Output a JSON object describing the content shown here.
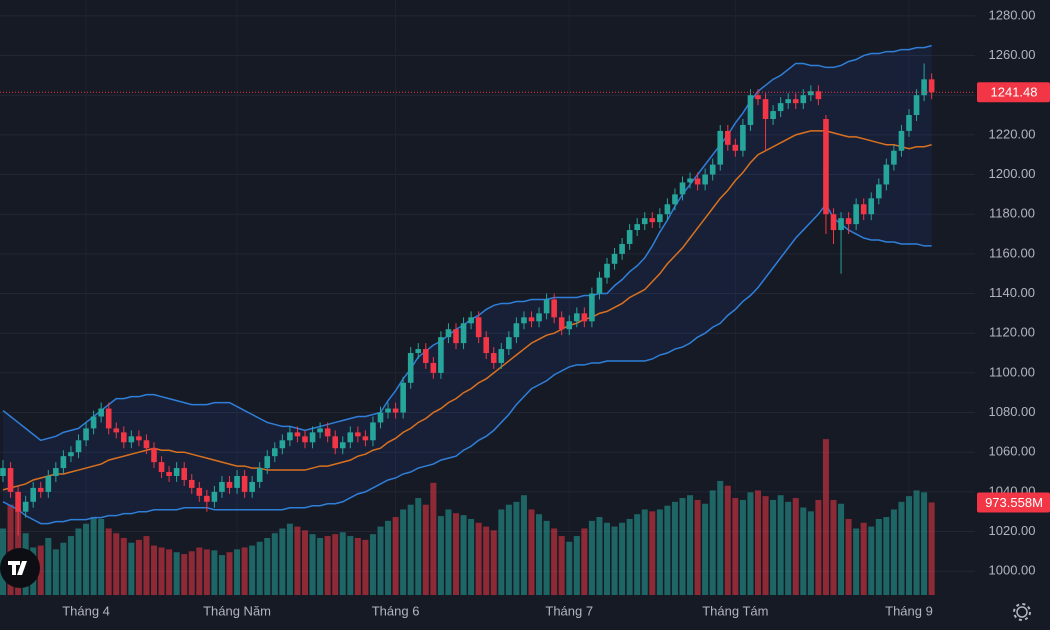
{
  "chart_data": {
    "type": "candlestick",
    "candles": [
      [
        1048,
        1056,
        1045,
        1052
      ],
      [
        1052,
        1055,
        1037,
        1040
      ],
      [
        1040,
        1043,
        1018,
        1030
      ],
      [
        1030,
        1038,
        1027,
        1035
      ],
      [
        1035,
        1045,
        1032,
        1042
      ],
      [
        1042,
        1045,
        1037,
        1040
      ],
      [
        1040,
        1051,
        1037,
        1048
      ],
      [
        1048,
        1055,
        1045,
        1052
      ],
      [
        1052,
        1061,
        1049,
        1058
      ],
      [
        1058,
        1063,
        1055,
        1060
      ],
      [
        1060,
        1069,
        1057,
        1066
      ],
      [
        1066,
        1075,
        1063,
        1072
      ],
      [
        1072,
        1081,
        1069,
        1078
      ],
      [
        1078,
        1085,
        1075,
        1082
      ],
      [
        1082,
        1085,
        1069,
        1072
      ],
      [
        1072,
        1075,
        1067,
        1070
      ],
      [
        1070,
        1073,
        1062,
        1065
      ],
      [
        1065,
        1071,
        1062,
        1068
      ],
      [
        1068,
        1071,
        1063,
        1066
      ],
      [
        1066,
        1069,
        1059,
        1062
      ],
      [
        1062,
        1065,
        1052,
        1055
      ],
      [
        1055,
        1058,
        1047,
        1050
      ],
      [
        1050,
        1053,
        1045,
        1048
      ],
      [
        1048,
        1055,
        1045,
        1052
      ],
      [
        1052,
        1055,
        1043,
        1046
      ],
      [
        1046,
        1049,
        1039,
        1042
      ],
      [
        1042,
        1045,
        1035,
        1038
      ],
      [
        1038,
        1041,
        1030,
        1035
      ],
      [
        1035,
        1043,
        1032,
        1040
      ],
      [
        1040,
        1048,
        1037,
        1045
      ],
      [
        1045,
        1048,
        1039,
        1042
      ],
      [
        1042,
        1051,
        1039,
        1048
      ],
      [
        1048,
        1051,
        1037,
        1040
      ],
      [
        1040,
        1048,
        1037,
        1045
      ],
      [
        1045,
        1055,
        1042,
        1052
      ],
      [
        1052,
        1061,
        1049,
        1058
      ],
      [
        1058,
        1065,
        1055,
        1062
      ],
      [
        1062,
        1069,
        1059,
        1066
      ],
      [
        1066,
        1073,
        1063,
        1070
      ],
      [
        1070,
        1073,
        1065,
        1068
      ],
      [
        1068,
        1071,
        1062,
        1065
      ],
      [
        1065,
        1073,
        1062,
        1070
      ],
      [
        1070,
        1075,
        1067,
        1072
      ],
      [
        1072,
        1075,
        1065,
        1068
      ],
      [
        1068,
        1071,
        1059,
        1062
      ],
      [
        1062,
        1068,
        1059,
        1065
      ],
      [
        1065,
        1073,
        1062,
        1070
      ],
      [
        1070,
        1073,
        1065,
        1068
      ],
      [
        1068,
        1071,
        1063,
        1066
      ],
      [
        1066,
        1078,
        1063,
        1075
      ],
      [
        1075,
        1083,
        1072,
        1080
      ],
      [
        1080,
        1085,
        1077,
        1082
      ],
      [
        1082,
        1085,
        1077,
        1080
      ],
      [
        1080,
        1098,
        1077,
        1095
      ],
      [
        1095,
        1113,
        1092,
        1110
      ],
      [
        1110,
        1115,
        1107,
        1112
      ],
      [
        1112,
        1115,
        1102,
        1105
      ],
      [
        1105,
        1108,
        1097,
        1100
      ],
      [
        1100,
        1121,
        1097,
        1118
      ],
      [
        1118,
        1125,
        1115,
        1122
      ],
      [
        1122,
        1125,
        1112,
        1115
      ],
      [
        1115,
        1128,
        1112,
        1125
      ],
      [
        1125,
        1131,
        1122,
        1128
      ],
      [
        1128,
        1131,
        1115,
        1118
      ],
      [
        1118,
        1121,
        1107,
        1110
      ],
      [
        1110,
        1113,
        1102,
        1105
      ],
      [
        1105,
        1115,
        1102,
        1112
      ],
      [
        1112,
        1121,
        1109,
        1118
      ],
      [
        1118,
        1128,
        1115,
        1125
      ],
      [
        1125,
        1131,
        1122,
        1128
      ],
      [
        1128,
        1131,
        1123,
        1126
      ],
      [
        1126,
        1133,
        1123,
        1130
      ],
      [
        1130,
        1140,
        1127,
        1137
      ],
      [
        1137,
        1140,
        1125,
        1128
      ],
      [
        1128,
        1131,
        1119,
        1122
      ],
      [
        1122,
        1129,
        1119,
        1126
      ],
      [
        1126,
        1133,
        1123,
        1130
      ],
      [
        1130,
        1133,
        1123,
        1126
      ],
      [
        1126,
        1143,
        1123,
        1140
      ],
      [
        1140,
        1151,
        1137,
        1148
      ],
      [
        1148,
        1158,
        1145,
        1155
      ],
      [
        1155,
        1163,
        1152,
        1160
      ],
      [
        1160,
        1168,
        1157,
        1165
      ],
      [
        1165,
        1175,
        1162,
        1172
      ],
      [
        1172,
        1178,
        1169,
        1175
      ],
      [
        1175,
        1181,
        1172,
        1178
      ],
      [
        1178,
        1181,
        1173,
        1176
      ],
      [
        1176,
        1183,
        1173,
        1180
      ],
      [
        1180,
        1188,
        1177,
        1185
      ],
      [
        1185,
        1193,
        1182,
        1190
      ],
      [
        1190,
        1199,
        1187,
        1196
      ],
      [
        1196,
        1201,
        1193,
        1198
      ],
      [
        1198,
        1201,
        1192,
        1195
      ],
      [
        1195,
        1203,
        1192,
        1200
      ],
      [
        1200,
        1208,
        1197,
        1205
      ],
      [
        1205,
        1225,
        1202,
        1222
      ],
      [
        1222,
        1225,
        1212,
        1215
      ],
      [
        1215,
        1218,
        1209,
        1212
      ],
      [
        1212,
        1228,
        1209,
        1225
      ],
      [
        1225,
        1243,
        1222,
        1240
      ],
      [
        1240,
        1243,
        1235,
        1238
      ],
      [
        1238,
        1241,
        1212,
        1228
      ],
      [
        1228,
        1235,
        1225,
        1232
      ],
      [
        1232,
        1239,
        1229,
        1236
      ],
      [
        1236,
        1241,
        1233,
        1238
      ],
      [
        1238,
        1241,
        1233,
        1236
      ],
      [
        1236,
        1243,
        1233,
        1240
      ],
      [
        1240,
        1245,
        1237,
        1242
      ],
      [
        1242,
        1245,
        1235,
        1238
      ],
      [
        1228,
        1230,
        1170,
        1180
      ],
      [
        1180,
        1183,
        1165,
        1172
      ],
      [
        1172,
        1181,
        1150,
        1178
      ],
      [
        1178,
        1181,
        1170,
        1175
      ],
      [
        1175,
        1188,
        1172,
        1185
      ],
      [
        1185,
        1188,
        1177,
        1180
      ],
      [
        1180,
        1191,
        1177,
        1188
      ],
      [
        1188,
        1198,
        1185,
        1195
      ],
      [
        1195,
        1208,
        1192,
        1205
      ],
      [
        1205,
        1215,
        1202,
        1212
      ],
      [
        1212,
        1225,
        1209,
        1222
      ],
      [
        1222,
        1233,
        1219,
        1230
      ],
      [
        1230,
        1243,
        1227,
        1240
      ],
      [
        1240,
        1256,
        1237,
        1248
      ],
      [
        1248,
        1251,
        1238,
        1241.48
      ]
    ],
    "volume": [
      700,
      950,
      900,
      650,
      500,
      520,
      600,
      480,
      550,
      620,
      700,
      750,
      820,
      800,
      700,
      650,
      600,
      550,
      580,
      620,
      520,
      500,
      480,
      450,
      430,
      460,
      500,
      480,
      470,
      420,
      450,
      480,
      500,
      520,
      560,
      600,
      650,
      700,
      750,
      720,
      680,
      640,
      600,
      620,
      640,
      660,
      620,
      600,
      580,
      640,
      720,
      780,
      820,
      900,
      950,
      1020,
      950,
      1180,
      830,
      900,
      860,
      840,
      800,
      760,
      720,
      680,
      900,
      950,
      980,
      1050,
      900,
      850,
      780,
      700,
      620,
      560,
      620,
      700,
      780,
      820,
      760,
      720,
      760,
      800,
      850,
      900,
      880,
      900,
      940,
      980,
      1020,
      1050,
      1000,
      960,
      1100,
      1200,
      1150,
      1020,
      1000,
      1080,
      1100,
      1040,
      1000,
      1050,
      980,
      1020,
      920,
      880,
      1000,
      1640,
      1000,
      960,
      800,
      700,
      760,
      720,
      800,
      820,
      900,
      980,
      1040,
      1100,
      1080,
      973.558
    ],
    "volume_label": "973.558M",
    "bands": {
      "upper": [
        1081,
        1078,
        1075,
        1072,
        1069,
        1066,
        1067,
        1068,
        1070,
        1071,
        1072,
        1075,
        1078,
        1081,
        1084,
        1087,
        1087,
        1088,
        1088,
        1089,
        1089,
        1088,
        1087,
        1086,
        1085,
        1084,
        1084,
        1084,
        1085,
        1085,
        1085,
        1083,
        1081,
        1079,
        1077,
        1075,
        1074,
        1073,
        1073,
        1072,
        1071,
        1072,
        1073,
        1074,
        1075,
        1076,
        1077,
        1078,
        1078,
        1079,
        1080,
        1086,
        1091,
        1097,
        1102,
        1108,
        1111,
        1114,
        1116,
        1119,
        1122,
        1124,
        1127,
        1129,
        1132,
        1134,
        1135,
        1135,
        1136,
        1136,
        1137,
        1137,
        1137,
        1138,
        1138,
        1138,
        1138,
        1139,
        1139,
        1140,
        1140,
        1144,
        1147,
        1151,
        1154,
        1158,
        1164,
        1171,
        1177,
        1184,
        1190,
        1195,
        1200,
        1205,
        1210,
        1215,
        1220,
        1226,
        1231,
        1237,
        1242,
        1245,
        1248,
        1250,
        1253,
        1256,
        1256,
        1255,
        1255,
        1254,
        1254,
        1255,
        1257,
        1258,
        1260,
        1261,
        1261,
        1262,
        1262,
        1263,
        1263,
        1264,
        1264,
        1265
      ],
      "middle": [
        1041,
        1042,
        1043,
        1044,
        1046,
        1047,
        1048,
        1049,
        1049,
        1050,
        1051,
        1052,
        1053,
        1054,
        1056,
        1057,
        1058,
        1059,
        1060,
        1061,
        1062,
        1061,
        1061,
        1060,
        1060,
        1059,
        1058,
        1057,
        1056,
        1055,
        1054,
        1053,
        1053,
        1052,
        1052,
        1051,
        1051,
        1051,
        1051,
        1051,
        1051,
        1052,
        1053,
        1053,
        1054,
        1055,
        1056,
        1058,
        1059,
        1061,
        1062,
        1065,
        1067,
        1070,
        1072,
        1075,
        1077,
        1080,
        1082,
        1085,
        1087,
        1090,
        1092,
        1095,
        1097,
        1100,
        1103,
        1106,
        1109,
        1112,
        1115,
        1117,
        1119,
        1120,
        1122,
        1124,
        1125,
        1127,
        1128,
        1130,
        1131,
        1133,
        1135,
        1138,
        1140,
        1142,
        1146,
        1150,
        1155,
        1159,
        1163,
        1168,
        1173,
        1178,
        1183,
        1188,
        1192,
        1197,
        1201,
        1206,
        1210,
        1212,
        1214,
        1216,
        1218,
        1220,
        1221,
        1222,
        1222,
        1222,
        1221,
        1220,
        1219,
        1219,
        1218,
        1217,
        1216,
        1215,
        1215,
        1214,
        1213,
        1214,
        1214,
        1215
      ],
      "lower": [
        1035,
        1033,
        1031,
        1028,
        1026,
        1024,
        1024,
        1025,
        1025,
        1026,
        1026,
        1026,
        1027,
        1027,
        1028,
        1028,
        1029,
        1029,
        1030,
        1030,
        1031,
        1031,
        1031,
        1031,
        1032,
        1032,
        1032,
        1032,
        1031,
        1031,
        1031,
        1031,
        1031,
        1031,
        1031,
        1031,
        1031,
        1031,
        1032,
        1032,
        1032,
        1033,
        1033,
        1034,
        1034,
        1035,
        1037,
        1039,
        1040,
        1042,
        1044,
        1046,
        1047,
        1049,
        1050,
        1052,
        1053,
        1054,
        1056,
        1057,
        1058,
        1061,
        1063,
        1066,
        1068,
        1071,
        1075,
        1079,
        1084,
        1088,
        1092,
        1094,
        1096,
        1099,
        1101,
        1103,
        1104,
        1104,
        1105,
        1105,
        1106,
        1106,
        1106,
        1106,
        1106,
        1106,
        1107,
        1109,
        1110,
        1112,
        1113,
        1115,
        1118,
        1120,
        1123,
        1125,
        1129,
        1132,
        1136,
        1139,
        1143,
        1148,
        1153,
        1158,
        1163,
        1168,
        1172,
        1176,
        1180,
        1185,
        1178,
        1175,
        1172,
        1170,
        1168,
        1167,
        1167,
        1166,
        1166,
        1165,
        1165,
        1165,
        1164,
        1164
      ]
    },
    "xticks": [
      {
        "value": 11,
        "label": "Tháng 4"
      },
      {
        "value": 31,
        "label": "Tháng Năm"
      },
      {
        "value": 52,
        "label": "Tháng 6"
      },
      {
        "value": 75,
        "label": "Tháng 7"
      },
      {
        "value": 97,
        "label": "Tháng Tám"
      },
      {
        "value": 120,
        "label": "Tháng 9"
      }
    ],
    "ylim": [
      988,
      1288
    ],
    "yticks": [
      {
        "value": 1000,
        "label": "1000.00"
      },
      {
        "value": 1020,
        "label": "1020.00"
      },
      {
        "value": 1040,
        "label": "1040.00"
      },
      {
        "value": 1060,
        "label": "1060.00"
      },
      {
        "value": 1080,
        "label": "1080.00"
      },
      {
        "value": 1100,
        "label": "1100.00"
      },
      {
        "value": 1120,
        "label": "1120.00"
      },
      {
        "value": 1140,
        "label": "1140.00"
      },
      {
        "value": 1160,
        "label": "1160.00"
      },
      {
        "value": 1180,
        "label": "1180.00"
      },
      {
        "value": 1200,
        "label": "1200.00"
      },
      {
        "value": 1220,
        "label": "1220.00"
      },
      {
        "value": 1240,
        "label": "1240.00"
      },
      {
        "value": 1260,
        "label": "1260.00"
      },
      {
        "value": 1280,
        "label": "1280.00"
      }
    ],
    "y2lim": [
      0,
      6260
    ],
    "grid": true,
    "colors": {
      "up": "#26a69a",
      "down": "#f23645",
      "band": "#2f7fd9",
      "middle": "#d9711f"
    }
  }
}
